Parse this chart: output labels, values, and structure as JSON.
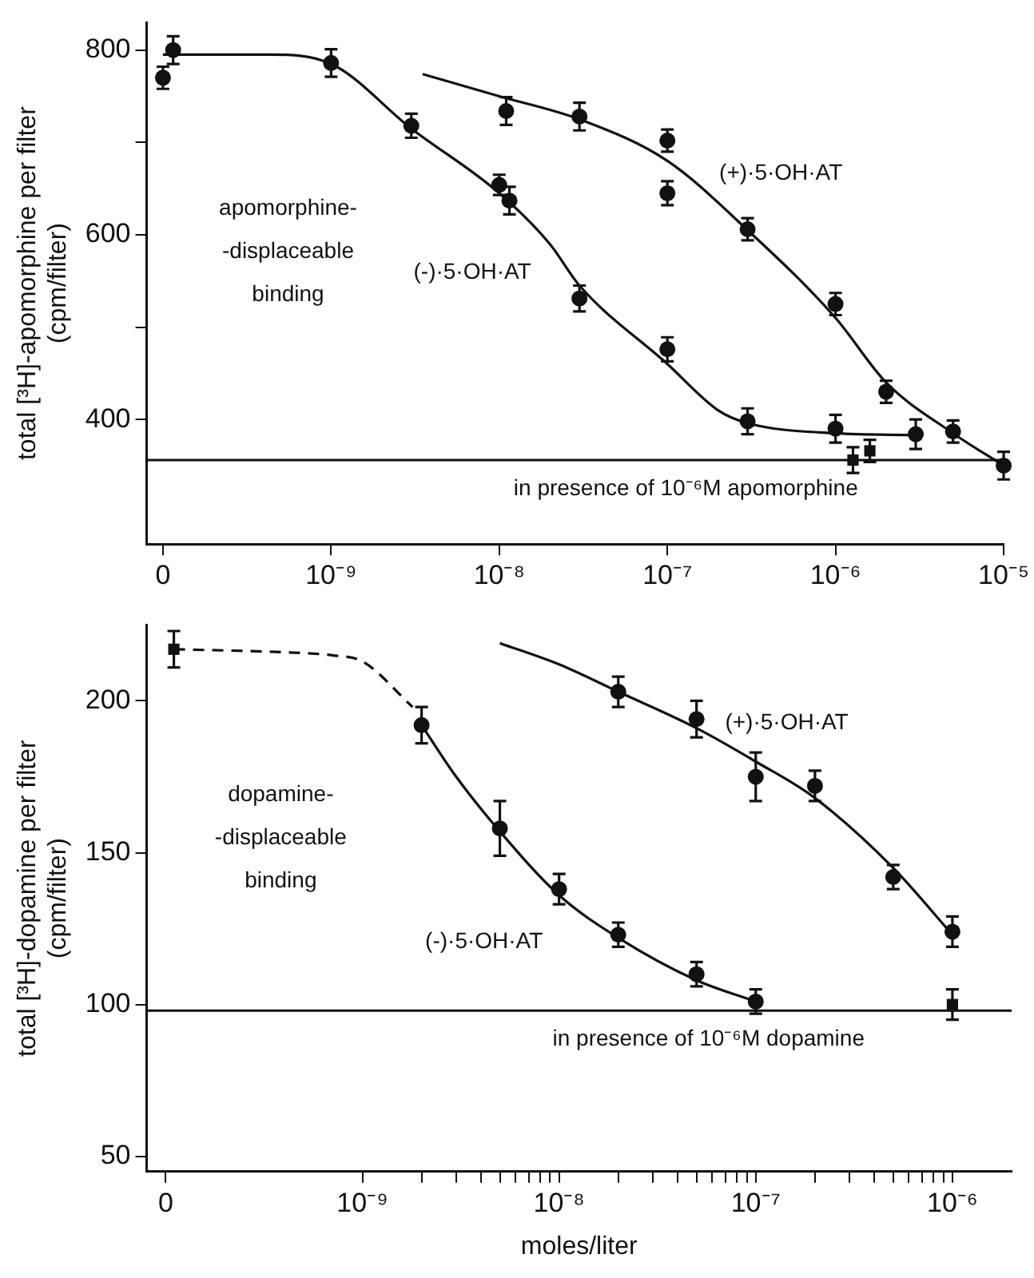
{
  "chart_data": [
    {
      "type": "scatter",
      "ylabel": "total [³H]-apomorphine per filter\n(cpm/filter)",
      "log": "x",
      "xlim": [
        8e-11,
        1e-05
      ],
      "xticks": [
        {
          "value": 1e-10,
          "label": "0"
        },
        {
          "value": 1e-09,
          "label": "10⁻⁹"
        },
        {
          "value": 1e-08,
          "label": "10⁻⁸"
        },
        {
          "value": 1e-07,
          "label": "10⁻⁷"
        },
        {
          "value": 1e-06,
          "label": "10⁻⁶"
        },
        {
          "value": 1e-05,
          "label": "10⁻⁵"
        }
      ],
      "ylim": [
        265,
        830
      ],
      "yticks": [
        400,
        {
          "value": 500,
          "label": null
        },
        600,
        {
          "value": 700,
          "label": null
        },
        800
      ],
      "series": [
        {
          "type": "scatter",
          "marker": "circle",
          "color": "#111111",
          "x": [
            1e-10,
            1.15e-10,
            1e-09,
            3e-09,
            1e-08,
            1.15e-08,
            3e-08,
            1e-07,
            3e-07,
            1e-06,
            3e-06
          ],
          "values": [
            770,
            800,
            786,
            718,
            654,
            637,
            531,
            476,
            398,
            390,
            384
          ],
          "errors": [
            12,
            15,
            15,
            13,
            11,
            15,
            14,
            13,
            14,
            15,
            16
          ]
        },
        {
          "type": "scatter",
          "marker": "circle",
          "color": "#111111",
          "x": [
            1.1e-08,
            3e-08,
            1e-07,
            1e-07,
            3e-07,
            1e-06,
            2e-06,
            5e-06,
            1e-05
          ],
          "values": [
            734,
            728,
            702,
            645,
            606,
            525,
            430,
            387,
            350
          ],
          "errors": [
            15,
            15,
            12,
            13,
            12,
            12,
            12,
            12,
            15
          ]
        },
        {
          "type": "scatter",
          "marker": "square",
          "color": "#111111",
          "x": [
            1.27e-06,
            1.6e-06
          ],
          "values": [
            356,
            366
          ],
          "errors": [
            14,
            12
          ]
        },
        {
          "type": "line",
          "color": "#111111",
          "x": [
            1e-10,
            4.3e-10,
            1e-09,
            3e-09,
            1e-08,
            2e-08,
            3e-08,
            1e-07,
            2e-07,
            3e-07,
            1e-06,
            3e-06
          ],
          "values": [
            795,
            795,
            785,
            715,
            645,
            590,
            545,
            460,
            410,
            396,
            385,
            383
          ]
        },
        {
          "type": "line",
          "color": "#111111",
          "x": [
            3.5e-09,
            1e-08,
            3e-08,
            1e-07,
            3e-07,
            1e-06,
            2e-06,
            5e-06,
            1e-05
          ],
          "values": [
            774,
            750,
            725,
            680,
            605,
            510,
            440,
            385,
            350
          ]
        }
      ],
      "ref_lines": [
        {
          "axis": "y",
          "value": 356,
          "label": "in presence of 10⁻⁶M apomorphine"
        }
      ],
      "annotations": [
        "apomorphine-\n-displaceable\nbinding",
        "(+)·5·OH·AT",
        "(-)·5·OH·AT"
      ]
    },
    {
      "type": "scatter",
      "xlabel": "moles/liter",
      "ylabel": "total [³H]-dopamine per filter\n(cpm/filter)",
      "log": "x",
      "xlim": [
        8e-11,
        2e-06
      ],
      "xticks": [
        {
          "value": 1e-10,
          "label": "0"
        },
        {
          "value": 1e-09,
          "label": "10⁻⁹"
        },
        {
          "value": 2e-09,
          "label": null
        },
        {
          "value": 3e-09,
          "label": null
        },
        {
          "value": 4e-09,
          "label": null
        },
        {
          "value": 5e-09,
          "label": null
        },
        {
          "value": 6e-09,
          "label": null
        },
        {
          "value": 7e-09,
          "label": null
        },
        {
          "value": 8e-09,
          "label": null
        },
        {
          "value": 9e-09,
          "label": null
        },
        {
          "value": 1e-08,
          "label": "10⁻⁸"
        },
        {
          "value": 2e-08,
          "label": null
        },
        {
          "value": 3e-08,
          "label": null
        },
        {
          "value": 4e-08,
          "label": null
        },
        {
          "value": 5e-08,
          "label": null
        },
        {
          "value": 6e-08,
          "label": null
        },
        {
          "value": 7e-08,
          "label": null
        },
        {
          "value": 8e-08,
          "label": null
        },
        {
          "value": 9e-08,
          "label": null
        },
        {
          "value": 1e-07,
          "label": "10⁻⁷"
        },
        {
          "value": 2e-07,
          "label": null
        },
        {
          "value": 3e-07,
          "label": null
        },
        {
          "value": 4e-07,
          "label": null
        },
        {
          "value": 5e-07,
          "label": null
        },
        {
          "value": 6e-07,
          "label": null
        },
        {
          "value": 7e-07,
          "label": null
        },
        {
          "value": 8e-07,
          "label": null
        },
        {
          "value": 9e-07,
          "label": null
        },
        {
          "value": 1e-06,
          "label": "10⁻⁶"
        }
      ],
      "ylim": [
        45,
        225
      ],
      "yticks": [
        50,
        100,
        150,
        200
      ],
      "series": [
        {
          "type": "scatter",
          "marker": "circle",
          "color": "#111111",
          "x": [
            2e-09,
            5e-09,
            1e-08,
            2e-08,
            5e-08,
            1e-07
          ],
          "values": [
            192,
            158,
            138,
            123,
            110,
            101
          ],
          "errors": [
            6,
            9,
            5,
            4,
            4,
            4
          ]
        },
        {
          "type": "scatter",
          "marker": "circle",
          "color": "#111111",
          "x": [
            2e-08,
            5e-08,
            1e-07,
            2e-07,
            5e-07,
            1e-06
          ],
          "values": [
            203,
            194,
            175,
            172,
            142,
            124
          ],
          "errors": [
            5,
            6,
            8,
            5,
            4,
            5
          ]
        },
        {
          "type": "scatter",
          "marker": "square",
          "color": "#111111",
          "x": [
            1.1e-10,
            1e-06
          ],
          "values": [
            217,
            100
          ],
          "errors": [
            6,
            5
          ]
        },
        {
          "type": "line",
          "line_style": "dashed",
          "color": "#111111",
          "x": [
            1.1e-10,
            4e-10,
            7e-10,
            1e-09,
            1.8e-09
          ],
          "values": [
            217,
            216,
            215,
            213,
            198
          ]
        },
        {
          "type": "line",
          "color": "#111111",
          "x": [
            2e-09,
            3e-09,
            5e-09,
            1e-08,
            2e-08,
            5e-08,
            1e-07
          ],
          "values": [
            192,
            175,
            157,
            136,
            122,
            108,
            101
          ]
        },
        {
          "type": "line",
          "color": "#111111",
          "x": [
            5e-09,
            1e-08,
            2e-08,
            5e-08,
            1e-07,
            2e-07,
            5e-07,
            1e-06
          ],
          "values": [
            219,
            212,
            203,
            191,
            180,
            168,
            145,
            123
          ]
        }
      ],
      "ref_lines": [
        {
          "axis": "y",
          "value": 98,
          "label": "in presence of 10⁻⁶M dopamine"
        }
      ],
      "annotations": [
        "dopamine-\n-displaceable\nbinding",
        "(+)·5·OH·AT",
        "(-)·5·OH·AT"
      ]
    }
  ]
}
